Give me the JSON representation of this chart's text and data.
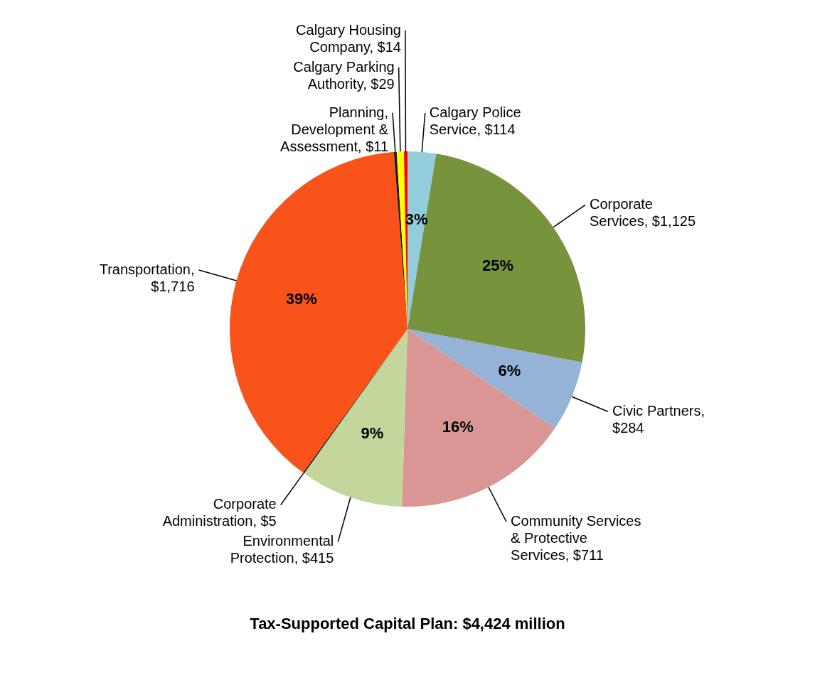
{
  "chart_data": {
    "type": "pie",
    "title": "Tax-Supported Capital Plan: $4,424 million",
    "categories": [
      "Calgary Police Service, $114",
      "Corporate Services, $1,125",
      "Civic Partners, $284",
      "Community Services & Protective Services, $711",
      "Environmental Protection, $415",
      "Corporate Administration, $5",
      "Transportation, $1,716",
      "Planning, Development & Assessment, $11",
      "Calgary Parking Authority, $29",
      "Calgary Housing Company, $14"
    ],
    "values": [
      2.58,
      25.43,
      6.42,
      16.07,
      9.38,
      0.11,
      38.79,
      0.25,
      0.65,
      0.32
    ],
    "colors": [
      "#92cddc",
      "#77933c",
      "#95b3d7",
      "#d99694",
      "#c3d69b",
      "#000000",
      "#f9521a",
      "#1a1a1a",
      "#ffff00",
      "#ff0000"
    ],
    "value_labels": [
      "3%",
      "25%",
      "6%",
      "16%",
      "9%",
      null,
      "39%",
      null,
      null,
      null
    ]
  }
}
